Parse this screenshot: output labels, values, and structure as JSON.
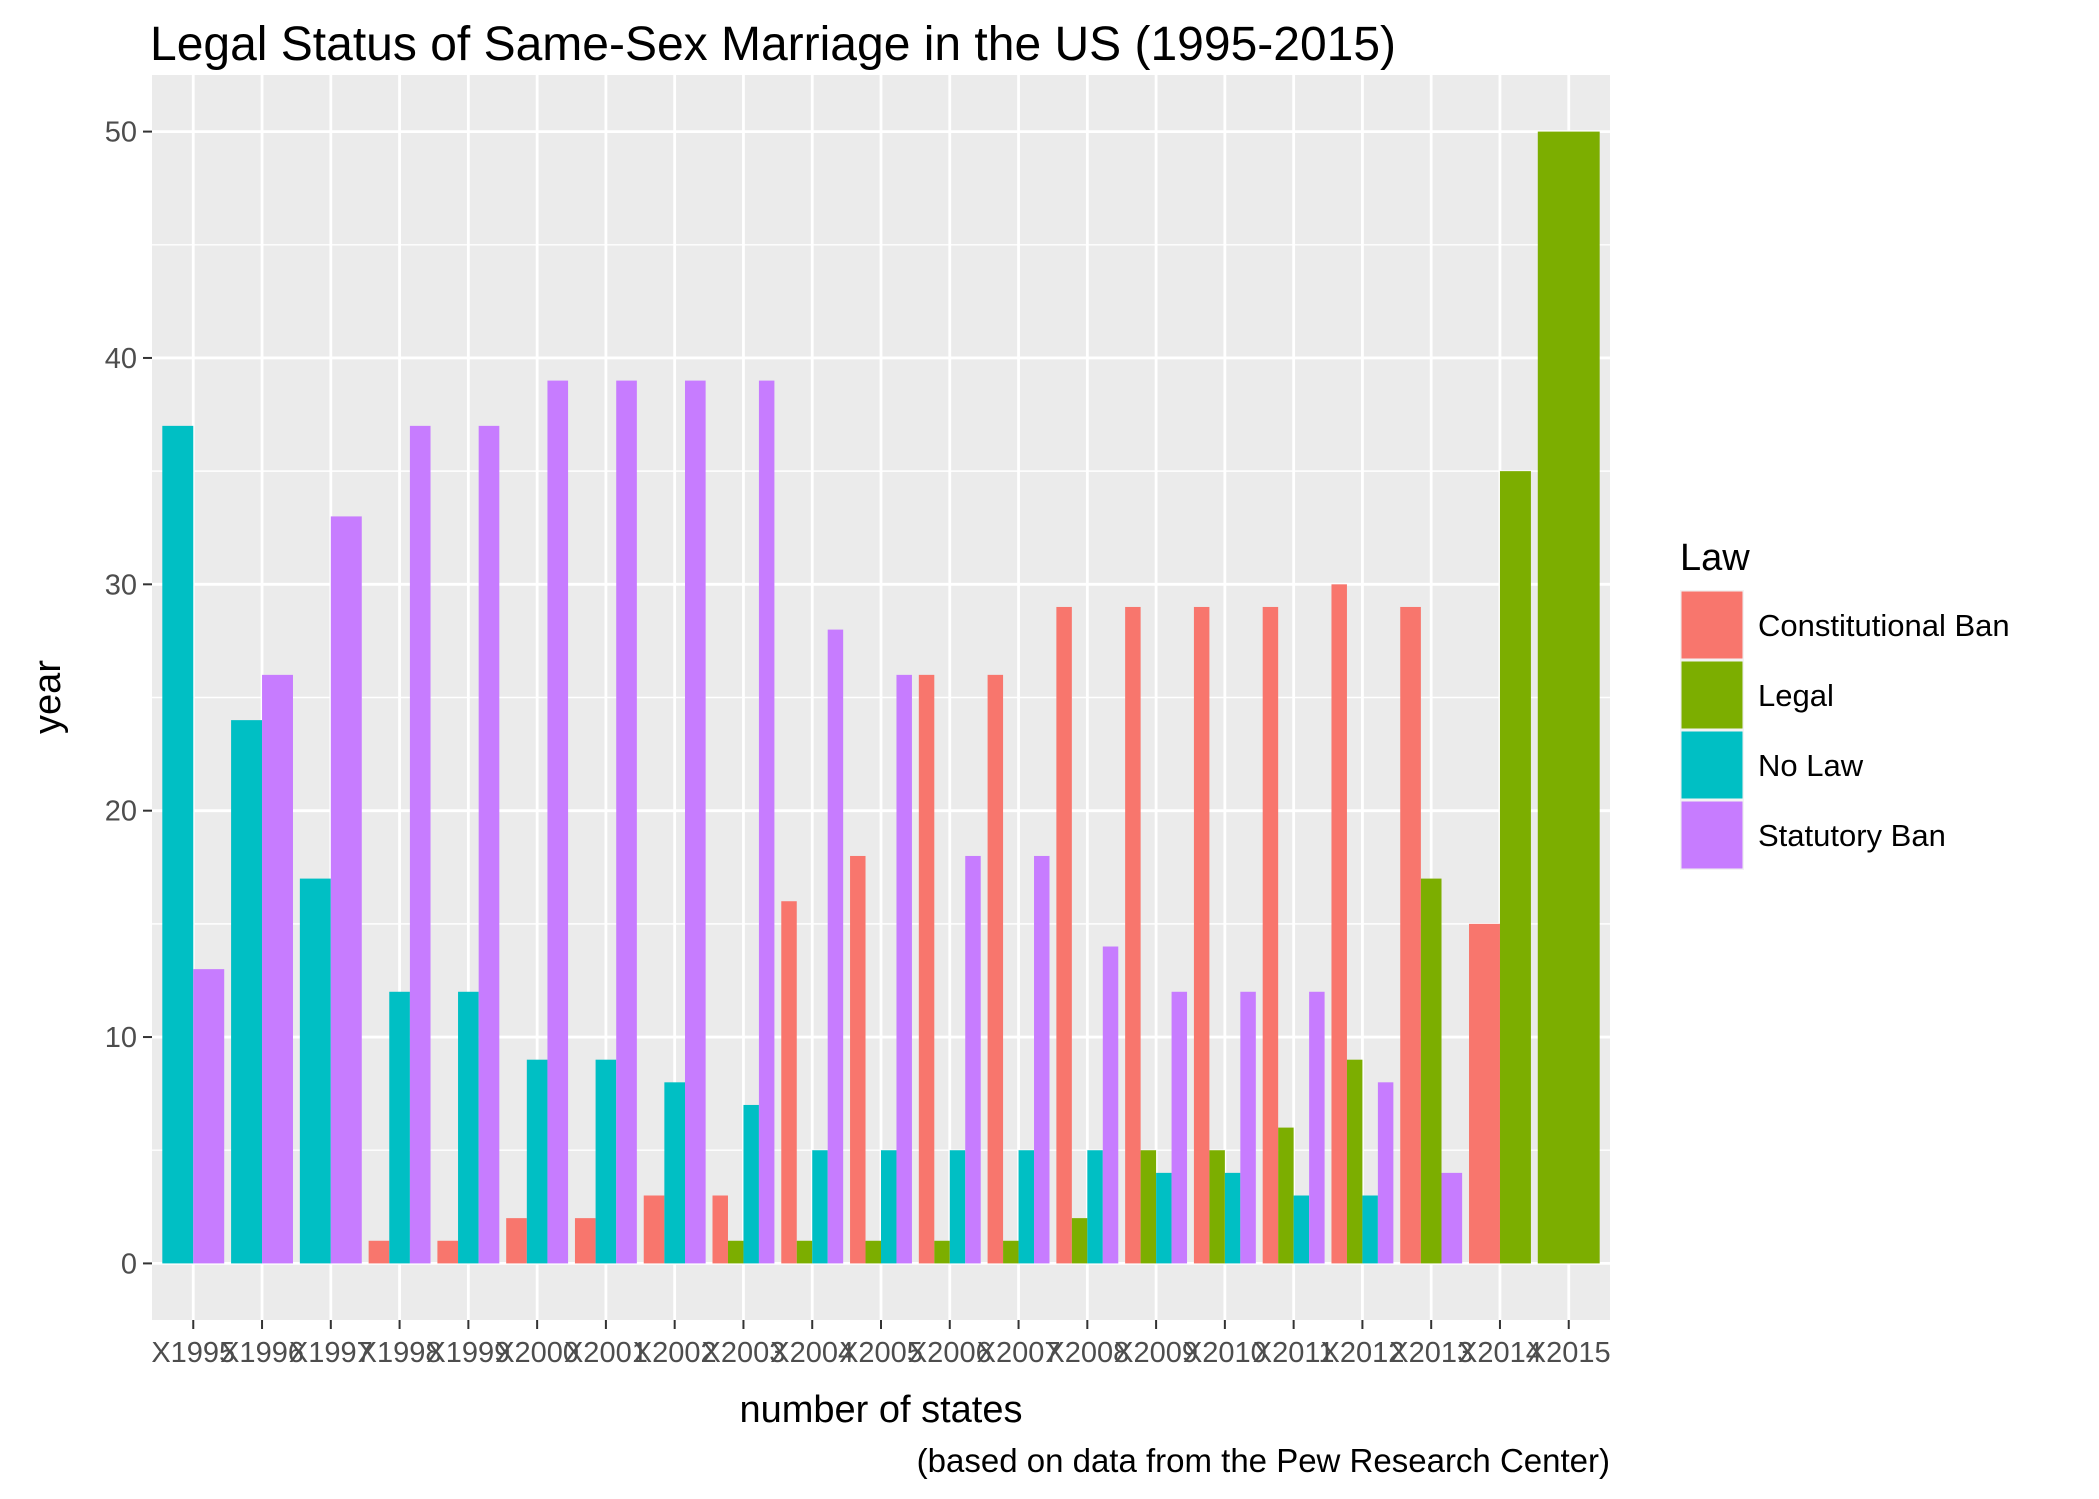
{
  "chart_data": {
    "type": "bar",
    "title": "Legal Status of Same-Sex Marriage in the US (1995-2015)",
    "xlabel": "number of states",
    "ylabel": "year",
    "caption": "(based on data from the Pew Research Center)",
    "categories": [
      "X1995",
      "X1996",
      "X1997",
      "X1998",
      "X1999",
      "X2000",
      "X2001",
      "X2002",
      "X2003",
      "X2004",
      "X2005",
      "X2006",
      "X2007",
      "X2008",
      "X2009",
      "X2010",
      "X2011",
      "X2012",
      "X2013",
      "X2014",
      "X2015"
    ],
    "yticks": [
      0,
      10,
      20,
      30,
      40,
      50
    ],
    "ylim": [
      -2.5,
      52.5
    ],
    "grid": true,
    "legend": {
      "title": "Law",
      "position": "right",
      "entries": [
        "Constitutional Ban",
        "Legal",
        "No Law",
        "Statutory Ban"
      ]
    },
    "colors": {
      "Constitutional Ban": "#F8766D",
      "Legal": "#7CAE00",
      "No Law": "#00BFC4",
      "Statutory Ban": "#C77CFF",
      "panel": "#EBEBEB",
      "grid": "#FFFFFF"
    },
    "series": [
      {
        "name": "Constitutional Ban",
        "values": [
          null,
          null,
          null,
          1,
          1,
          2,
          2,
          3,
          3,
          16,
          18,
          26,
          26,
          29,
          29,
          29,
          29,
          30,
          29,
          15,
          null
        ]
      },
      {
        "name": "Legal",
        "values": [
          null,
          null,
          null,
          null,
          null,
          null,
          null,
          null,
          1,
          1,
          1,
          1,
          1,
          2,
          5,
          5,
          6,
          9,
          17,
          35,
          50
        ]
      },
      {
        "name": "No Law",
        "values": [
          37,
          24,
          17,
          12,
          12,
          9,
          9,
          8,
          7,
          5,
          5,
          5,
          5,
          5,
          4,
          4,
          3,
          3,
          null,
          null,
          null
        ]
      },
      {
        "name": "Statutory Ban",
        "values": [
          13,
          26,
          33,
          37,
          37,
          39,
          39,
          39,
          39,
          28,
          26,
          18,
          18,
          14,
          12,
          12,
          12,
          8,
          4,
          null,
          null
        ]
      }
    ]
  }
}
